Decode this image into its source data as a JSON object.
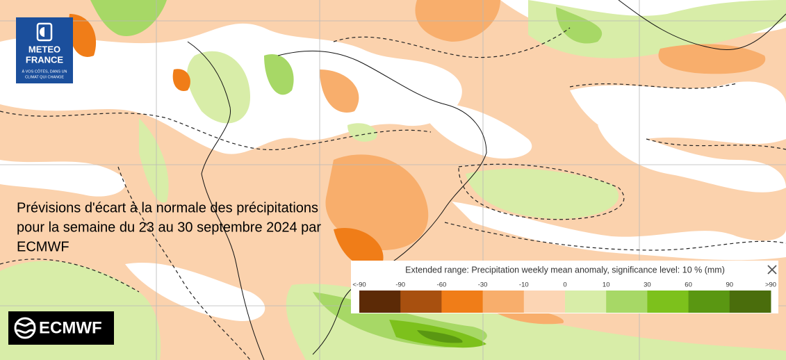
{
  "logo_meteo_france": {
    "line1": "METEO",
    "line2": "FRANCE",
    "tagline1": "À VOS CÔTÉS, DANS UN",
    "tagline2": "CLIMAT QUI CHANGE"
  },
  "caption": {
    "lines": [
      "Prévisions d'écart  à  la normale des précipitations",
      "pour la semaine du 23 au 30 septembre 2024 par",
      "ECMWF"
    ]
  },
  "legend": {
    "title": "Extended range: Precipitation weekly mean anomaly, significance level: 10 % (mm)",
    "labels": [
      "<-90",
      "-90",
      "-60",
      "-30",
      "-10",
      "0",
      "10",
      "30",
      "60",
      "90",
      ">90"
    ],
    "colors": [
      "#5c2a06",
      "#a8500f",
      "#f07d18",
      "#f8ae6c",
      "#fcd5b4",
      "#d8eda8",
      "#a7d866",
      "#7dc11c",
      "#5a9712",
      "#4a6d0c"
    ]
  },
  "logo_ecmwf": {
    "text": "ECMWF"
  }
}
